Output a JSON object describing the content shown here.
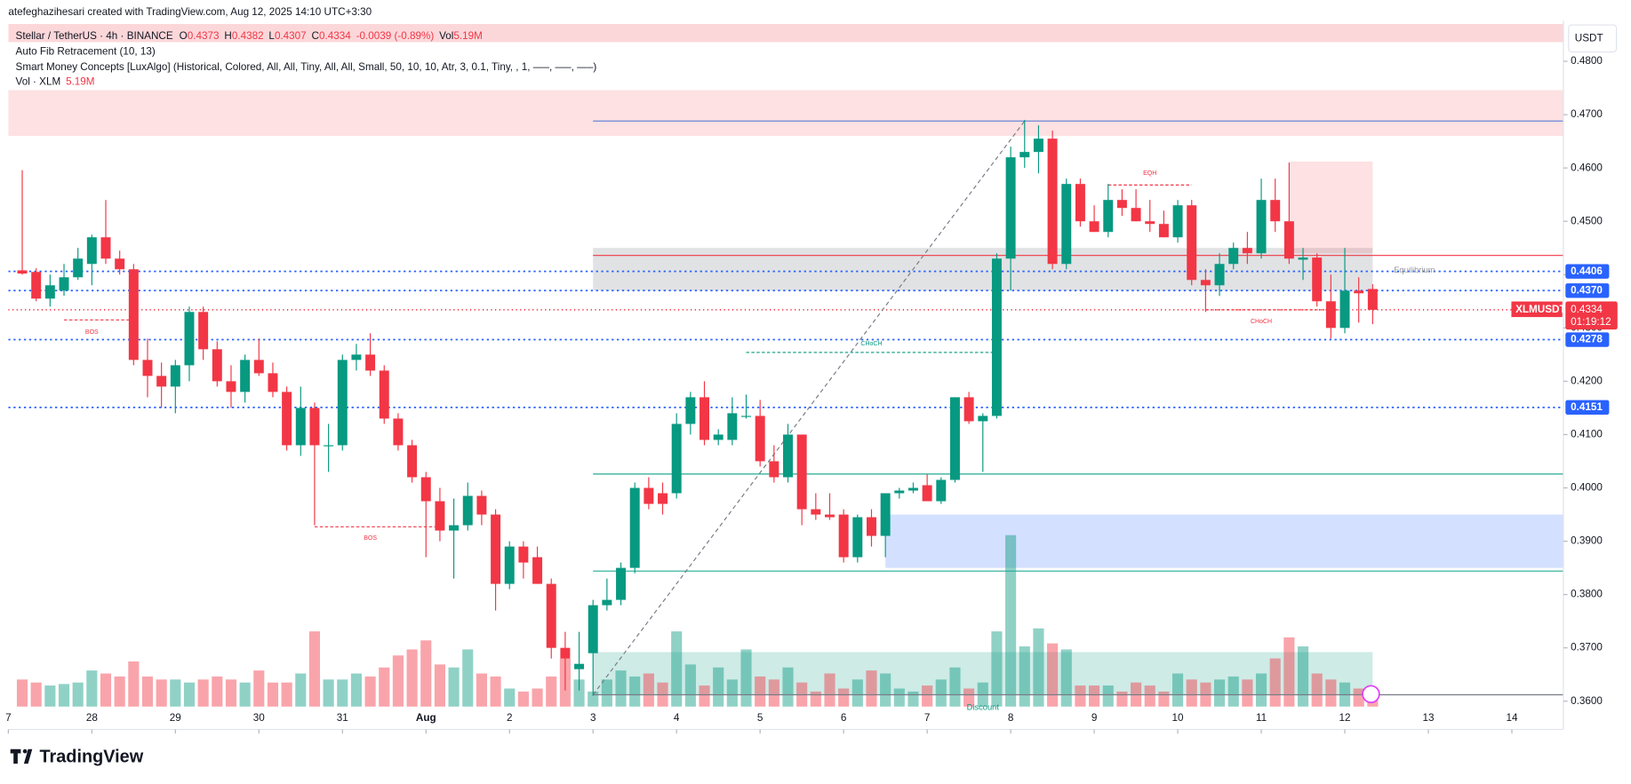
{
  "header": {
    "credit": "atefeghazihesari created with TradingView.com, Aug 12, 2025 14:10 UTC+3:30",
    "symbol": "Stellar / TetherUS · 4h · BINANCE",
    "o": "O",
    "o_value": "0.4373",
    "h": "H",
    "h_value": "0.4382",
    "l": "L",
    "l_value": "0.4307",
    "c": "C",
    "c_value": "0.4334",
    "change": "-0.0039 (-0.89%)",
    "vol": "Vol",
    "vol_value": "5.19M",
    "indicators": [
      "Auto Fib Retracement (10, 13)",
      "Smart Money Concepts [LuxAlgo] (Historical, Colored, All, All, Tiny, All, All, Small, 50, 10, 10, Atr, 3, 0.1, Tiny, , 1, —–, —–, —–)"
    ],
    "vol_line": "Vol · XLM",
    "vol_line_value": "5.19M",
    "brand": "TradingView"
  },
  "chart_data": {
    "type": "candlestick",
    "currency": "USDT",
    "up_color": "#089981",
    "down_color": "#f23645",
    "open": [
      0.4408,
      0.4405,
      0.4355,
      0.437,
      0.4395,
      0.442,
      0.447,
      0.443,
      0.441,
      0.424,
      0.421,
      0.419,
      0.423,
      0.433,
      0.426,
      0.42,
      0.418,
      0.424,
      0.4215,
      0.418,
      0.408,
      0.415,
      0.408,
      0.408,
      0.424,
      0.425,
      0.422,
      0.413,
      0.408,
      0.402,
      0.3975,
      0.392,
      0.393,
      0.3985,
      0.395,
      0.382,
      0.389,
      0.387,
      0.382,
      0.37,
      0.366,
      0.369,
      0.378,
      0.379,
      0.385,
      0.4,
      0.399,
      0.399,
      0.412,
      0.417,
      0.409,
      0.409,
      0.4135,
      0.4135,
      0.405,
      0.402,
      0.41,
      0.396,
      0.395,
      0.395,
      0.387,
      0.3945,
      0.391,
      0.399,
      0.3995,
      0.4005,
      0.3975,
      0.4015,
      0.417,
      0.4125,
      0.4135,
      0.443,
      0.462,
      0.463,
      0.4655,
      0.442,
      0.457,
      0.45,
      0.448,
      0.454,
      0.4525,
      0.45,
      0.4495,
      0.447,
      0.453,
      0.439,
      0.438,
      0.442,
      0.445,
      0.444,
      0.454,
      0.45,
      0.4428,
      0.4432,
      0.435,
      0.43,
      0.437,
      0.4373
    ],
    "high": [
      0.4596,
      0.4412,
      0.44,
      0.442,
      0.445,
      0.4475,
      0.454,
      0.4445,
      0.442,
      0.428,
      0.4235,
      0.424,
      0.434,
      0.434,
      0.4275,
      0.423,
      0.425,
      0.428,
      0.4235,
      0.419,
      0.419,
      0.416,
      0.412,
      0.425,
      0.427,
      0.429,
      0.423,
      0.414,
      0.409,
      0.403,
      0.4,
      0.398,
      0.401,
      0.3995,
      0.396,
      0.39,
      0.39,
      0.389,
      0.383,
      0.373,
      0.373,
      0.379,
      0.383,
      0.386,
      0.401,
      0.402,
      0.401,
      0.414,
      0.418,
      0.42,
      0.411,
      0.417,
      0.4175,
      0.4165,
      0.408,
      0.412,
      0.41,
      0.399,
      0.399,
      0.396,
      0.395,
      0.396,
      0.399,
      0.4,
      0.401,
      0.4025,
      0.402,
      0.417,
      0.418,
      0.414,
      0.444,
      0.464,
      0.469,
      0.468,
      0.467,
      0.458,
      0.458,
      0.453,
      0.457,
      0.456,
      0.456,
      0.454,
      0.452,
      0.454,
      0.454,
      0.441,
      0.444,
      0.446,
      0.448,
      0.458,
      0.458,
      0.461,
      0.445,
      0.444,
      0.44,
      0.445,
      0.4395,
      0.4382
    ],
    "low": [
      0.44,
      0.435,
      0.434,
      0.436,
      0.439,
      0.438,
      0.442,
      0.44,
      0.423,
      0.417,
      0.415,
      0.414,
      0.42,
      0.424,
      0.419,
      0.415,
      0.416,
      0.421,
      0.417,
      0.407,
      0.406,
      0.393,
      0.403,
      0.407,
      0.422,
      0.421,
      0.412,
      0.407,
      0.401,
      0.387,
      0.39,
      0.383,
      0.392,
      0.393,
      0.377,
      0.381,
      0.383,
      0.382,
      0.368,
      0.362,
      0.362,
      0.361,
      0.377,
      0.378,
      0.384,
      0.396,
      0.395,
      0.398,
      0.41,
      0.408,
      0.408,
      0.408,
      0.413,
      0.404,
      0.401,
      0.401,
      0.393,
      0.394,
      0.394,
      0.386,
      0.386,
      0.389,
      0.387,
      0.398,
      0.399,
      0.3975,
      0.397,
      0.401,
      0.412,
      0.403,
      0.413,
      0.437,
      0.46,
      0.459,
      0.441,
      0.441,
      0.449,
      0.448,
      0.447,
      0.451,
      0.45,
      0.448,
      0.447,
      0.446,
      0.438,
      0.433,
      0.436,
      0.441,
      0.442,
      0.443,
      0.448,
      0.442,
      0.439,
      0.434,
      0.428,
      0.429,
      0.431,
      0.4307
    ],
    "close": [
      0.4402,
      0.4355,
      0.438,
      0.4395,
      0.443,
      0.447,
      0.443,
      0.441,
      0.424,
      0.421,
      0.419,
      0.423,
      0.433,
      0.426,
      0.42,
      0.418,
      0.424,
      0.4215,
      0.418,
      0.408,
      0.415,
      0.408,
      0.408,
      0.424,
      0.425,
      0.422,
      0.413,
      0.408,
      0.402,
      0.3975,
      0.392,
      0.393,
      0.3985,
      0.395,
      0.382,
      0.389,
      0.386,
      0.382,
      0.37,
      0.368,
      0.367,
      0.378,
      0.379,
      0.385,
      0.4,
      0.397,
      0.397,
      0.412,
      0.417,
      0.409,
      0.41,
      0.414,
      0.4135,
      0.405,
      0.402,
      0.41,
      0.396,
      0.395,
      0.3945,
      0.387,
      0.3945,
      0.391,
      0.399,
      0.3995,
      0.4,
      0.3975,
      0.4015,
      0.417,
      0.4125,
      0.4135,
      0.443,
      0.462,
      0.463,
      0.4655,
      0.442,
      0.457,
      0.45,
      0.448,
      0.454,
      0.4525,
      0.45,
      0.4495,
      0.447,
      0.453,
      0.439,
      0.438,
      0.442,
      0.445,
      0.444,
      0.454,
      0.45,
      0.443,
      0.4432,
      0.435,
      0.43,
      0.437,
      0.4365,
      0.4334
    ],
    "volume": [
      9,
      8,
      7,
      7.5,
      8,
      12,
      11,
      10,
      15,
      10,
      9,
      9,
      8,
      9,
      10,
      9,
      8,
      12,
      8,
      8,
      11,
      25,
      9,
      9,
      11,
      10,
      13,
      17,
      19,
      22,
      14,
      13,
      19,
      11,
      10,
      6,
      5,
      6,
      10,
      16,
      9,
      5,
      9,
      12,
      10,
      11,
      8,
      25,
      14,
      7,
      13,
      9,
      19,
      10,
      9,
      13,
      8,
      5,
      11,
      6,
      9,
      12,
      11,
      6,
      5,
      7,
      9,
      13,
      6,
      8,
      25,
      57,
      20,
      26,
      21,
      19,
      7,
      7,
      7,
      5,
      8,
      7,
      5,
      11,
      9,
      8,
      9,
      10,
      9,
      11,
      16,
      23,
      20,
      11,
      9,
      8,
      6,
      5.19
    ],
    "xticks": [
      {
        "value": -1,
        "label": "7"
      },
      {
        "value": 5,
        "label": "28"
      },
      {
        "value": 11,
        "label": "29"
      },
      {
        "value": 17,
        "label": "30"
      },
      {
        "value": 23,
        "label": "31"
      },
      {
        "value": 29,
        "label": "Aug"
      },
      {
        "value": 35,
        "label": "2"
      },
      {
        "value": 41,
        "label": "3"
      },
      {
        "value": 47,
        "label": "4"
      },
      {
        "value": 53,
        "label": "5"
      },
      {
        "value": 59,
        "label": "6"
      },
      {
        "value": 65,
        "label": "7"
      },
      {
        "value": 71,
        "label": "8"
      },
      {
        "value": 77,
        "label": "9"
      },
      {
        "value": 83,
        "label": "10"
      },
      {
        "value": 89,
        "label": "11"
      },
      {
        "value": 95,
        "label": "12"
      },
      {
        "value": 101,
        "label": "13"
      },
      {
        "value": 107,
        "label": "14"
      }
    ],
    "xlim": [
      -1,
      110.7
    ],
    "ylim": [
      0.3547,
      0.4876
    ],
    "yticks": [
      {
        "value": 0.48,
        "label": "0.4800"
      },
      {
        "value": 0.47,
        "label": "0.4700"
      },
      {
        "value": 0.46,
        "label": "0.4600"
      },
      {
        "value": 0.45,
        "label": "0.4500"
      },
      {
        "value": 0.44,
        "label": "0.4400"
      },
      {
        "value": 0.43,
        "label": "0.4300"
      },
      {
        "value": 0.42,
        "label": "0.4200"
      },
      {
        "value": 0.41,
        "label": "0.4100"
      },
      {
        "value": 0.4,
        "label": "0.4000"
      },
      {
        "value": 0.39,
        "label": "0.3900"
      },
      {
        "value": 0.38,
        "label": "0.3800"
      },
      {
        "value": 0.37,
        "label": "0.3700"
      },
      {
        "value": 0.36,
        "label": "0.3600"
      }
    ],
    "zones": [
      {
        "from": -1,
        "to": 110.7,
        "top": 0.487,
        "bottom": 0.4836,
        "color": "rgba(242,54,69,0.2)"
      },
      {
        "from": -1,
        "to": 110.7,
        "top": 0.4746,
        "bottom": 0.466,
        "color": "rgba(242,54,69,0.15)"
      },
      {
        "from": 41,
        "to": 97,
        "top": 0.445,
        "bottom": 0.437,
        "color": "rgba(120,123,134,0.22)"
      },
      {
        "from": 91,
        "to": 97,
        "top": 0.4612,
        "bottom": 0.444,
        "color": "rgba(242,54,69,0.15)"
      },
      {
        "from": 62,
        "to": 110.7,
        "top": 0.395,
        "bottom": 0.385,
        "color": "rgba(41,98,255,0.2)"
      },
      {
        "from": 41,
        "to": 97,
        "top": 0.3692,
        "bottom": 0.3612,
        "color": "rgba(8,153,129,0.2)"
      }
    ],
    "levels": [
      {
        "price": 0.4406,
        "from": -1,
        "color": "#2962ff",
        "dash": "2 3",
        "label": 0.4406
      },
      {
        "price": 0.437,
        "from": -1,
        "color": "#2962ff",
        "dash": "2 3",
        "label": {
          "value": 0.437,
          "label": "0.4370"
        }
      },
      {
        "price": 0.4278,
        "from": -1,
        "color": "#2962ff",
        "dash": "2 3",
        "label": 0.4278
      },
      {
        "price": 0.4151,
        "from": -1,
        "color": "#2962ff",
        "dash": "2 3",
        "label": 0.4151
      },
      {
        "price": 0.4688,
        "from": 41,
        "color": "#5b7fd6",
        "dash": ""
      },
      {
        "price": 0.4436,
        "from": 41,
        "color": "#f23645",
        "dash": ""
      },
      {
        "price": 0.4026,
        "from": 41,
        "color": "#22ab94",
        "dash": ""
      },
      {
        "price": 0.3844,
        "from": 41,
        "color": "#22ab94",
        "dash": ""
      },
      {
        "price": 0.3612,
        "from": 41,
        "color": "#787b86",
        "dash": ""
      },
      {
        "price": 0.4334,
        "from": -1,
        "color": "#f23645",
        "dash": "1 3"
      }
    ],
    "fib_line": {
      "from": 41,
      "from_price": 0.3612,
      "to": 72,
      "to_price": 0.4688
    },
    "annotations": [
      {
        "text": "BOS",
        "x": 5,
        "price": 0.4292,
        "from": 3,
        "to": 8,
        "line_price": 0.4315,
        "color": "#f23645"
      },
      {
        "text": "BOS",
        "x": 25,
        "price": 0.3906,
        "from": 21,
        "to": 30,
        "line_price": 0.3927,
        "color": "#f23645"
      },
      {
        "text": "CHoCH",
        "x": 61,
        "price": 0.427,
        "from": 52,
        "to": 70,
        "line_price": 0.4254,
        "color": "#089981"
      },
      {
        "text": "EQH",
        "x": 81,
        "price": 0.459,
        "from": 78,
        "to": 84,
        "line_price": 0.4568,
        "color": "#f23645"
      },
      {
        "text": "CHoCH",
        "x": 89,
        "price": 0.4312,
        "from": 85,
        "to": 95,
        "line_price": 0.4334,
        "color": "#f23645"
      },
      {
        "text": "Equilibrium",
        "x": 100,
        "price": 0.4408,
        "color": "#9598a1"
      },
      {
        "text": "Discount",
        "x": 69,
        "price": 0.3588,
        "color": "#089981"
      }
    ],
    "last_price": {
      "name": "XLMUSDT",
      "value": 0.4334,
      "countdown": "01:19:12"
    }
  }
}
